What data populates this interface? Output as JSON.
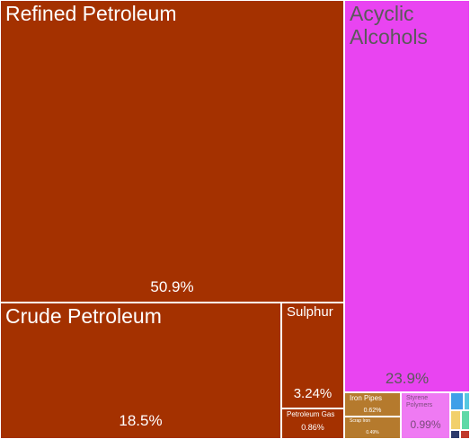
{
  "chart_data": {
    "type": "treemap",
    "tiles": [
      {
        "label": "Refined Petroleum",
        "value": "50.9%",
        "color": "#a43100",
        "text_color": "#ffffff"
      },
      {
        "label": "Acyclic Alcohols",
        "value": "23.9%",
        "color": "#e944f1",
        "text_color": "#5a5a5a"
      },
      {
        "label": "Crude Petroleum",
        "value": "18.5%",
        "color": "#a43100",
        "text_color": "#ffffff"
      },
      {
        "label": "Sulphur",
        "value": "3.24%",
        "color": "#a43100",
        "text_color": "#ffffff"
      },
      {
        "label": "Petroleum Gas",
        "value": "0.86%",
        "color": "#a43100",
        "text_color": "#ffffff"
      },
      {
        "label": "Iron Pipes",
        "value": "0.62%",
        "color": "#b57a2d",
        "text_color": "#ffffff"
      },
      {
        "label": "Scrap Iron",
        "value": "0.49%",
        "color": "#b57a2d",
        "text_color": "#ffffff"
      },
      {
        "label": "Styrene Polymers",
        "value": "0.99%",
        "color": "#ef7af3",
        "text_color": "#7a4a7a"
      },
      {
        "label": "",
        "value": "",
        "color": "#3f9fe8",
        "text_color": "#ffffff"
      },
      {
        "label": "",
        "value": "",
        "color": "#56c8e0",
        "text_color": "#ffffff"
      },
      {
        "label": "",
        "value": "",
        "color": "#f2d06b",
        "text_color": "#ffffff"
      },
      {
        "label": "",
        "value": "",
        "color": "#5fd9a7",
        "text_color": "#ffffff"
      },
      {
        "label": "",
        "value": "",
        "color": "#2b3a6b",
        "text_color": "#ffffff"
      },
      {
        "label": "",
        "value": "",
        "color": "#c0392b",
        "text_color": "#ffffff"
      }
    ]
  }
}
